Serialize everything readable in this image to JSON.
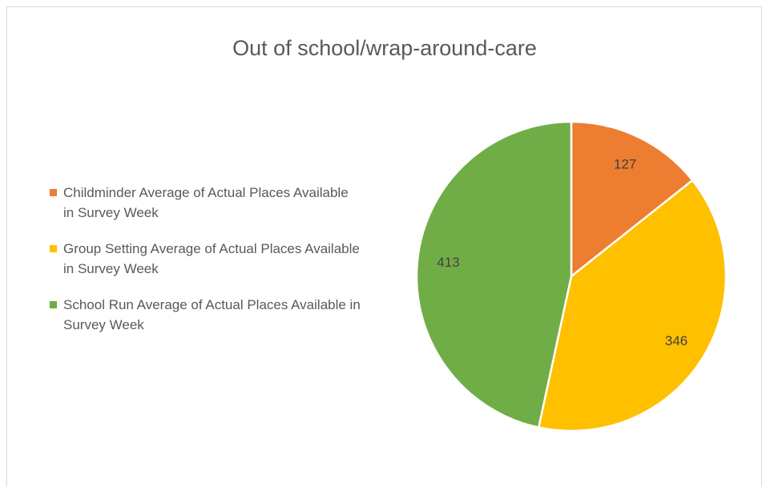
{
  "chart_data": {
    "type": "pie",
    "title": "Out of school/wrap-around-care",
    "categories": [
      "Childminder Average of Actual Places Available in Survey Week",
      "Group Setting Average of Actual Places Available in Survey Week",
      "School Run Average of Actual Places Available in Survey Week"
    ],
    "values": [
      127,
      346,
      413
    ],
    "colors": [
      "#ED7D31",
      "#FFC000",
      "#70AD47"
    ],
    "legend": "left"
  }
}
